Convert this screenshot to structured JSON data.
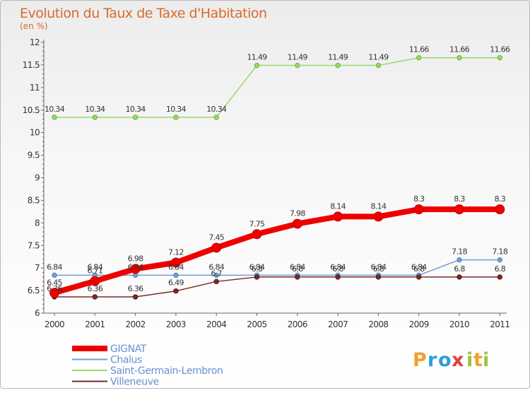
{
  "title": "Evolution du Taux de Taxe d'Habitation",
  "subtitle": "(en %)",
  "logo": {
    "text": "Proxiti",
    "letters": [
      "P",
      "r",
      "o",
      "x",
      "i",
      "t",
      "i"
    ],
    "colors": [
      "#f0a030",
      "#2aa0d8",
      "#2aa0d8",
      "#e04040",
      "#9ac43a",
      "#f0a030",
      "#9ac43a"
    ]
  },
  "chart_data": {
    "type": "line",
    "title": "Evolution du Taux de Taxe d'Habitation",
    "ylabel": "(en %)",
    "xlabel": "",
    "x": [
      "2000",
      "2001",
      "2002",
      "2003",
      "2004",
      "2005",
      "2006",
      "2007",
      "2008",
      "2009",
      "2010",
      "2011"
    ],
    "ylim": [
      6,
      12
    ],
    "yticks": [
      "6",
      "6.5",
      "7",
      "7.5",
      "8",
      "8.5",
      "9",
      "9.5",
      "10",
      "10.5",
      "11",
      "11.5",
      "12"
    ],
    "grid": false,
    "legend_position": "bottom-left",
    "series": [
      {
        "name": "GIGNAT",
        "color": "#ee0000",
        "values": [
          6.45,
          6.71,
          6.98,
          7.12,
          7.45,
          7.75,
          7.98,
          8.14,
          8.14,
          8.3,
          8.3,
          8.3
        ],
        "labels": [
          "6.45",
          "6.71",
          "6.98",
          "7.12",
          "7.45",
          "7.75",
          "7.98",
          "8.14",
          "8.14",
          "8.3",
          "8.3",
          "8.3"
        ]
      },
      {
        "name": "Chalus",
        "color": "#6f9fd0",
        "values": [
          6.84,
          6.84,
          6.84,
          6.84,
          6.84,
          6.84,
          6.84,
          6.84,
          6.84,
          6.84,
          7.18,
          7.18
        ],
        "labels": [
          "6.84",
          "6.84",
          "6.84",
          "6.84",
          "6.84",
          "6.84",
          "6.84",
          "6.84",
          "6.84",
          "6.84",
          "7.18",
          "7.18"
        ]
      },
      {
        "name": "Saint-Germain-Lembron",
        "color": "#9ad86a",
        "values": [
          10.34,
          10.34,
          10.34,
          10.34,
          10.34,
          11.49,
          11.49,
          11.49,
          11.49,
          11.66,
          11.66,
          11.66
        ],
        "labels": [
          "10.34",
          "10.34",
          "10.34",
          "10.34",
          "10.34",
          "11.49",
          "11.49",
          "11.49",
          "11.49",
          "11.66",
          "11.66",
          "11.66"
        ]
      },
      {
        "name": "Villeneuve",
        "color": "#7a2a2a",
        "values": [
          6.36,
          6.36,
          6.36,
          6.49,
          6.7,
          6.8,
          6.8,
          6.8,
          6.8,
          6.8,
          6.8,
          6.8
        ],
        "labels": [
          "6.36",
          "6.36",
          "6.36",
          "6.49",
          "6.7",
          "6.8",
          "6.8",
          "6.8",
          "6.8",
          "6.8",
          "6.8",
          "6.8"
        ]
      }
    ]
  }
}
